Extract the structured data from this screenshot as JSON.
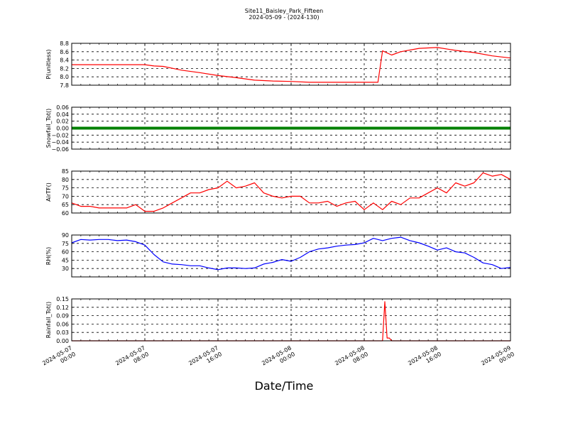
{
  "title": "Site11_Baisley_Park_Fifteen",
  "subtitle": "2024-05-09 - (2024-130)",
  "xlabel": "Date/Time",
  "chart_data": [
    {
      "type": "line",
      "ylabel": "P(unitless)",
      "ylim": [
        7.8,
        8.8
      ],
      "yticks": [
        "7.8",
        "8.0",
        "8.2",
        "8.4",
        "8.6",
        "8.8"
      ],
      "grid": true,
      "color": "#ff0000",
      "x": [
        "2024-05-07 00:00",
        "2024-05-07 02:00",
        "2024-05-07 04:00",
        "2024-05-07 06:00",
        "2024-05-07 08:00",
        "2024-05-07 09:00",
        "2024-05-07 10:00",
        "2024-05-07 12:00",
        "2024-05-07 14:00",
        "2024-05-07 16:00",
        "2024-05-07 18:00",
        "2024-05-07 20:00",
        "2024-05-07 22:00",
        "2024-05-08 00:00",
        "2024-05-08 02:00",
        "2024-05-08 04:00",
        "2024-05-08 06:00",
        "2024-05-08 08:00",
        "2024-05-08 09:30",
        "2024-05-08 10:00",
        "2024-05-08 11:00",
        "2024-05-08 12:00",
        "2024-05-08 14:00",
        "2024-05-08 16:00",
        "2024-05-08 18:00",
        "2024-05-08 20:00",
        "2024-05-08 22:00",
        "2024-05-09 00:00"
      ],
      "y": [
        8.29,
        8.29,
        8.29,
        8.29,
        8.29,
        8.26,
        8.25,
        8.16,
        8.1,
        8.03,
        7.98,
        7.92,
        7.9,
        7.89,
        7.87,
        7.87,
        7.87,
        7.87,
        7.87,
        8.62,
        8.52,
        8.6,
        8.68,
        8.7,
        8.63,
        8.58,
        8.5,
        8.45
      ]
    },
    {
      "type": "line",
      "ylabel": "Snowfall_Tot()",
      "ylim": [
        -0.06,
        0.06
      ],
      "yticks": [
        "−0.06",
        "−0.04",
        "−0.02",
        "0.00",
        "0.02",
        "0.04",
        "0.06"
      ],
      "grid": true,
      "color": "#008000",
      "x": [
        "2024-05-07 00:00",
        "2024-05-09 00:00"
      ],
      "y": [
        0.0,
        0.0
      ]
    },
    {
      "type": "line",
      "ylabel": "AirTF()",
      "ylim": [
        60,
        85
      ],
      "yticks": [
        "60",
        "65",
        "70",
        "75",
        "80",
        "85"
      ],
      "grid": true,
      "color": "#ff0000",
      "x": [
        "2024-05-07 00:00",
        "2024-05-07 01:00",
        "2024-05-07 02:00",
        "2024-05-07 03:00",
        "2024-05-07 04:00",
        "2024-05-07 05:00",
        "2024-05-07 06:00",
        "2024-05-07 07:00",
        "2024-05-07 08:00",
        "2024-05-07 09:00",
        "2024-05-07 10:00",
        "2024-05-07 11:00",
        "2024-05-07 12:00",
        "2024-05-07 13:00",
        "2024-05-07 14:00",
        "2024-05-07 15:00",
        "2024-05-07 16:00",
        "2024-05-07 17:00",
        "2024-05-07 18:00",
        "2024-05-07 19:00",
        "2024-05-07 20:00",
        "2024-05-07 21:00",
        "2024-05-07 22:00",
        "2024-05-07 23:00",
        "2024-05-08 00:00",
        "2024-05-08 01:00",
        "2024-05-08 02:00",
        "2024-05-08 03:00",
        "2024-05-08 04:00",
        "2024-05-08 05:00",
        "2024-05-08 06:00",
        "2024-05-08 07:00",
        "2024-05-08 08:00",
        "2024-05-08 09:00",
        "2024-05-08 10:00",
        "2024-05-08 11:00",
        "2024-05-08 12:00",
        "2024-05-08 13:00",
        "2024-05-08 14:00",
        "2024-05-08 15:00",
        "2024-05-08 16:00",
        "2024-05-08 17:00",
        "2024-05-08 18:00",
        "2024-05-08 19:00",
        "2024-05-08 20:00",
        "2024-05-08 21:00",
        "2024-05-08 22:00",
        "2024-05-08 23:00",
        "2024-05-09 00:00"
      ],
      "y": [
        66,
        64,
        64,
        63,
        63,
        63,
        63,
        65,
        61,
        61,
        63,
        66,
        69,
        72,
        72,
        74,
        75,
        79,
        75,
        76,
        78,
        72,
        70,
        69,
        70,
        70,
        66,
        66,
        67,
        64,
        66,
        67,
        62,
        66,
        62,
        67,
        65,
        69,
        69,
        72,
        75,
        72,
        78,
        76,
        78,
        84,
        82,
        83,
        80
      ]
    },
    {
      "type": "line",
      "ylabel": "RH(%)",
      "ylim": [
        15,
        90
      ],
      "yticks": [
        "30",
        "45",
        "60",
        "75",
        "90"
      ],
      "grid": true,
      "color": "#0000ff",
      "x": [
        "2024-05-07 00:00",
        "2024-05-07 01:00",
        "2024-05-07 02:00",
        "2024-05-07 03:00",
        "2024-05-07 04:00",
        "2024-05-07 05:00",
        "2024-05-07 06:00",
        "2024-05-07 07:00",
        "2024-05-07 08:00",
        "2024-05-07 09:00",
        "2024-05-07 10:00",
        "2024-05-07 11:00",
        "2024-05-07 12:00",
        "2024-05-07 13:00",
        "2024-05-07 14:00",
        "2024-05-07 15:00",
        "2024-05-07 16:00",
        "2024-05-07 17:00",
        "2024-05-07 18:00",
        "2024-05-07 19:00",
        "2024-05-07 20:00",
        "2024-05-07 21:00",
        "2024-05-07 22:00",
        "2024-05-07 23:00",
        "2024-05-08 00:00",
        "2024-05-08 01:00",
        "2024-05-08 02:00",
        "2024-05-08 03:00",
        "2024-05-08 04:00",
        "2024-05-08 05:00",
        "2024-05-08 06:00",
        "2024-05-08 07:00",
        "2024-05-08 08:00",
        "2024-05-08 09:00",
        "2024-05-08 10:00",
        "2024-05-08 11:00",
        "2024-05-08 12:00",
        "2024-05-08 13:00",
        "2024-05-08 14:00",
        "2024-05-08 15:00",
        "2024-05-08 16:00",
        "2024-05-08 17:00",
        "2024-05-08 18:00",
        "2024-05-08 19:00",
        "2024-05-08 20:00",
        "2024-05-08 21:00",
        "2024-05-08 22:00",
        "2024-05-08 23:00",
        "2024-05-09 00:00"
      ],
      "y": [
        76,
        82,
        81,
        82,
        82,
        80,
        81,
        78,
        72,
        55,
        42,
        38,
        37,
        35,
        35,
        31,
        28,
        31,
        31,
        30,
        31,
        38,
        41,
        46,
        43,
        50,
        60,
        65,
        67,
        70,
        72,
        73,
        76,
        84,
        80,
        84,
        86,
        80,
        76,
        70,
        63,
        67,
        60,
        58,
        50,
        40,
        37,
        30,
        32
      ]
    },
    {
      "type": "line",
      "ylabel": "Rainfall_Tot()",
      "ylim": [
        0.0,
        0.15
      ],
      "yticks": [
        "0.00",
        "0.03",
        "0.06",
        "0.09",
        "0.12",
        "0.15"
      ],
      "grid": true,
      "color": "#ff0000",
      "x": [
        "2024-05-07 00:00",
        "2024-05-08 10:00",
        "2024-05-08 10:15",
        "2024-05-08 10:30",
        "2024-05-08 10:45",
        "2024-05-08 11:00",
        "2024-05-09 00:00"
      ],
      "y": [
        0.0,
        0.0,
        0.14,
        0.01,
        0.01,
        0.0,
        0.0
      ]
    }
  ],
  "xticks": [
    "2024-05-07\n00:00",
    "2024-05-07\n08:00",
    "2024-05-07\n16:00",
    "2024-05-08\n00:00",
    "2024-05-08\n08:00",
    "2024-05-08\n16:00",
    "2024-05-09\n00:00"
  ],
  "xlim": [
    "2024-05-07 00:00",
    "2024-05-09 00:00"
  ]
}
